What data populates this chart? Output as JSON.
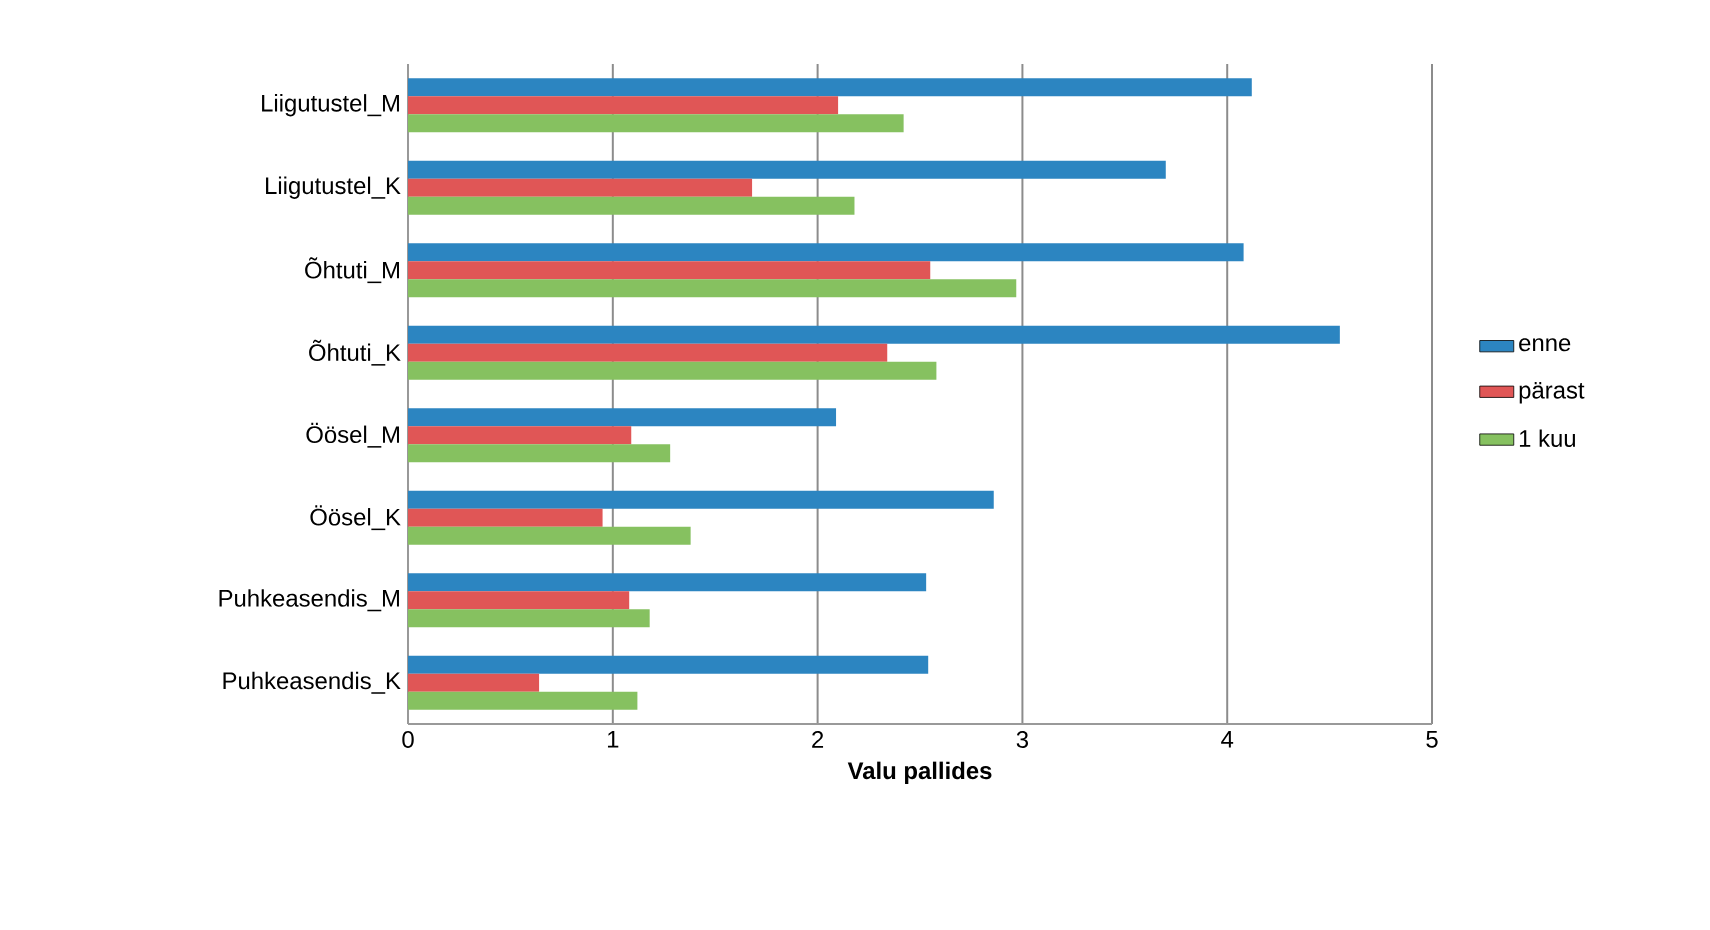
{
  "chart_data": {
    "type": "bar",
    "orientation": "horizontal",
    "xlabel": "Valu pallides",
    "categories": [
      "Liigutustel_M",
      "Liigutustel_K",
      "Õhtuti_M",
      "Õhtuti_K",
      "Öösel_M",
      "Öösel_K",
      "Puhkeasendis_M",
      "Puhkeasendis_K"
    ],
    "series": [
      {
        "name": "enne",
        "color": "#2c85c1",
        "values": [
          4.12,
          3.7,
          4.08,
          4.55,
          2.09,
          2.86,
          2.53,
          2.54
        ]
      },
      {
        "name": "pärast",
        "color": "#e05656",
        "values": [
          2.1,
          1.68,
          2.55,
          2.34,
          1.09,
          0.95,
          1.08,
          0.64
        ]
      },
      {
        "name": "1 kuu",
        "color": "#86c160",
        "values": [
          2.42,
          2.18,
          2.97,
          2.58,
          1.28,
          1.38,
          1.18,
          1.12
        ]
      }
    ],
    "xlim": [
      0,
      5
    ],
    "xticks": [
      0,
      1,
      2,
      3,
      4,
      5
    ],
    "grid": "x",
    "legend": "right"
  }
}
